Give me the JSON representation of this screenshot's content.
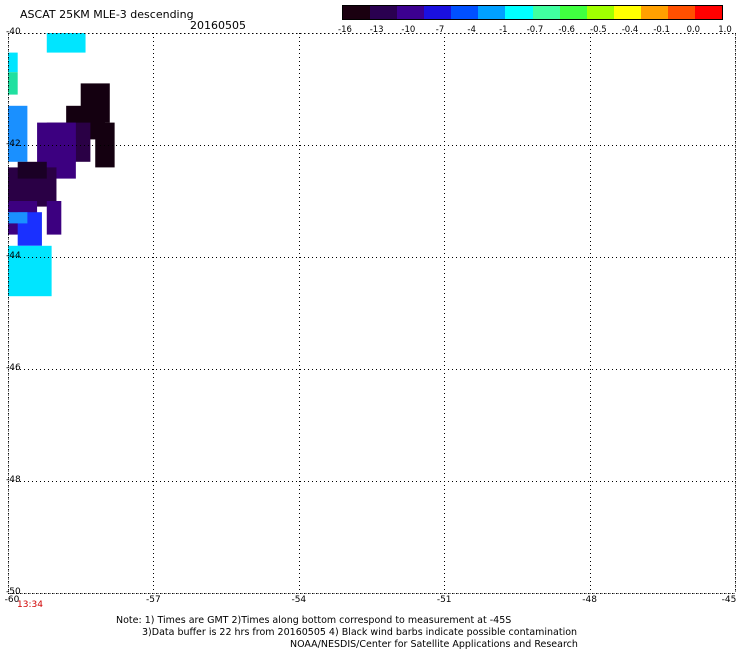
{
  "header": {
    "title": "ASCAT 25KM MLE-3 descending",
    "date": "20160505"
  },
  "colorbar": {
    "labels": [
      "-16",
      "-13",
      "-10",
      "-7",
      "-4",
      "-1",
      "-0.7",
      "-0.6",
      "-0.5",
      "-0.4",
      "-0.1",
      "0.0",
      "1.0"
    ],
    "colors": [
      "#1a0010",
      "#2a0050",
      "#3c0090",
      "#1a10e0",
      "#0050ff",
      "#00a0ff",
      "#00ffff",
      "#40ffa0",
      "#40ff40",
      "#a0ff00",
      "#ffff00",
      "#ffa000",
      "#ff5000",
      "#ff0000"
    ]
  },
  "axes": {
    "lat_labels": [
      "-40",
      "-42",
      "-44",
      "-46",
      "-48",
      "-50"
    ],
    "lon_labels": [
      "-60",
      "-57",
      "-54",
      "-51",
      "-48",
      "-45"
    ],
    "lat_range": [
      -50,
      -40
    ],
    "lon_range": [
      -60,
      -45
    ]
  },
  "data_cells": [
    {
      "color": "#00e5ff",
      "lon_range": [
        -59.2,
        -58.4
      ],
      "lat_range": [
        -40.35,
        -40.0
      ]
    },
    {
      "color": "#00e5ff",
      "lon_range": [
        -60.0,
        -59.8
      ],
      "lat_range": [
        -40.7,
        -40.35
      ]
    },
    {
      "color": "#20e0a0",
      "lon_range": [
        -60.0,
        -59.8
      ],
      "lat_range": [
        -41.1,
        -40.7
      ]
    },
    {
      "color": "#1a90ff",
      "lon_range": [
        -60.0,
        -59.6
      ],
      "lat_range": [
        -42.3,
        -41.3
      ]
    },
    {
      "color": "#140010",
      "lon_range": [
        -58.5,
        -57.9
      ],
      "lat_range": [
        -41.6,
        -40.9
      ]
    },
    {
      "color": "#140010",
      "lon_range": [
        -58.8,
        -58.0
      ],
      "lat_range": [
        -41.9,
        -41.3
      ]
    },
    {
      "color": "#140010",
      "lon_range": [
        -58.2,
        -57.8
      ],
      "lat_range": [
        -42.4,
        -41.6
      ]
    },
    {
      "color": "#2a0045",
      "lon_range": [
        -59.2,
        -58.3
      ],
      "lat_range": [
        -42.3,
        -41.6
      ]
    },
    {
      "color": "#3c0080",
      "lon_range": [
        -59.4,
        -58.6
      ],
      "lat_range": [
        -42.6,
        -41.6
      ]
    },
    {
      "color": "#3c0080",
      "lon_range": [
        -59.2,
        -58.6
      ],
      "lat_range": [
        -42.3,
        -41.9
      ]
    },
    {
      "color": "#2a0045",
      "lon_range": [
        -60.0,
        -59.0
      ],
      "lat_range": [
        -43.1,
        -42.4
      ]
    },
    {
      "color": "#1a0025",
      "lon_range": [
        -59.8,
        -59.2
      ],
      "lat_range": [
        -42.6,
        -42.3
      ]
    },
    {
      "color": "#3c0080",
      "lon_range": [
        -60.0,
        -59.4
      ],
      "lat_range": [
        -43.6,
        -43.0
      ]
    },
    {
      "color": "#3c0080",
      "lon_range": [
        -59.2,
        -58.9
      ],
      "lat_range": [
        -43.6,
        -43.0
      ]
    },
    {
      "color": "#1a30ff",
      "lon_range": [
        -59.8,
        -59.3
      ],
      "lat_range": [
        -43.8,
        -43.2
      ]
    },
    {
      "color": "#1a90ff",
      "lon_range": [
        -60.0,
        -59.6
      ],
      "lat_range": [
        -43.4,
        -43.2
      ]
    },
    {
      "color": "#00e5ff",
      "lon_range": [
        -60.0,
        -59.1
      ],
      "lat_range": [
        -44.7,
        -43.8
      ]
    }
  ],
  "notes": {
    "line1": "Note: 1) Times are GMT 2)Times along bottom correspond to measurement at -45S",
    "line2": "3)Data buffer is 22 hrs from 20160505 4) Black wind barbs indicate possible contamination",
    "line3": "NOAA/NESDIS/Center for Satellite Applications and Research"
  },
  "time_label": "13:34"
}
